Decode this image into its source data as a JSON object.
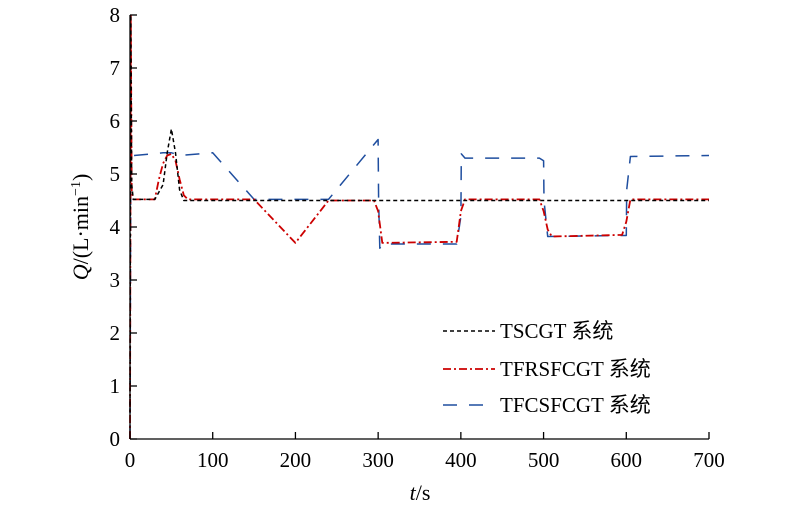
{
  "chart_data": {
    "type": "line",
    "xlabel_italic": "t",
    "xlabel_rest": "/s",
    "ylabel_italic": "Q",
    "ylabel_rest": "/(L·min",
    "ylabel_sup": "−1",
    "ylabel_close": ")",
    "xlim": [
      0,
      700
    ],
    "ylim": [
      0,
      8
    ],
    "xticks": [
      0,
      100,
      200,
      300,
      400,
      500,
      600,
      700
    ],
    "yticks": [
      0,
      1,
      2,
      3,
      4,
      5,
      6,
      7,
      8
    ],
    "grid": false,
    "legend_position": "bottom-right",
    "series": [
      {
        "name": "TSCGT 系统",
        "color": "#000000",
        "dash": "dashed-short",
        "x": [
          0,
          1,
          2,
          4,
          30,
          40,
          45,
          50,
          55,
          60,
          65,
          70,
          100,
          700
        ],
        "y": [
          0.5,
          8.0,
          4.8,
          4.52,
          4.52,
          4.8,
          5.4,
          5.85,
          5.4,
          4.7,
          4.5,
          4.5,
          4.5,
          4.5
        ]
      },
      {
        "name": "TFRSFCGT 系统",
        "color": "#cc0000",
        "dash": "dash-dot",
        "x": [
          0,
          1,
          2,
          4,
          30,
          35,
          40,
          45,
          50,
          55,
          60,
          65,
          70,
          75,
          150,
          200,
          240,
          295,
          300,
          305,
          395,
          400,
          405,
          495,
          500,
          505,
          510,
          595,
          600,
          605,
          700
        ],
        "y": [
          0.0,
          8.0,
          4.7,
          4.52,
          4.52,
          4.9,
          5.2,
          5.35,
          5.38,
          5.25,
          4.9,
          4.6,
          4.52,
          4.52,
          4.52,
          3.7,
          4.5,
          4.5,
          4.3,
          3.7,
          3.72,
          4.3,
          4.52,
          4.52,
          4.3,
          3.95,
          3.82,
          3.85,
          4.1,
          4.52,
          4.52
        ]
      },
      {
        "name": "TFCSFCGT 系统",
        "color": "#1f4e9f",
        "dash": "long-dash",
        "x": [
          0,
          1,
          2,
          5,
          40,
          50,
          55,
          60,
          100,
          150,
          160,
          230,
          240,
          300,
          300.5,
          302,
          305,
          395,
          400,
          400.5,
          405,
          495,
          500,
          500.5,
          505,
          595,
          600,
          600.5,
          605,
          700
        ],
        "y": [
          0.0,
          5.3,
          5.35,
          5.35,
          5.4,
          5.4,
          5.38,
          5.35,
          5.4,
          4.52,
          4.52,
          4.52,
          4.52,
          5.65,
          4.52,
          3.6,
          3.68,
          3.68,
          4.2,
          5.38,
          5.3,
          5.3,
          5.25,
          4.5,
          3.82,
          3.84,
          3.84,
          4.7,
          5.33,
          5.35
        ]
      }
    ]
  }
}
